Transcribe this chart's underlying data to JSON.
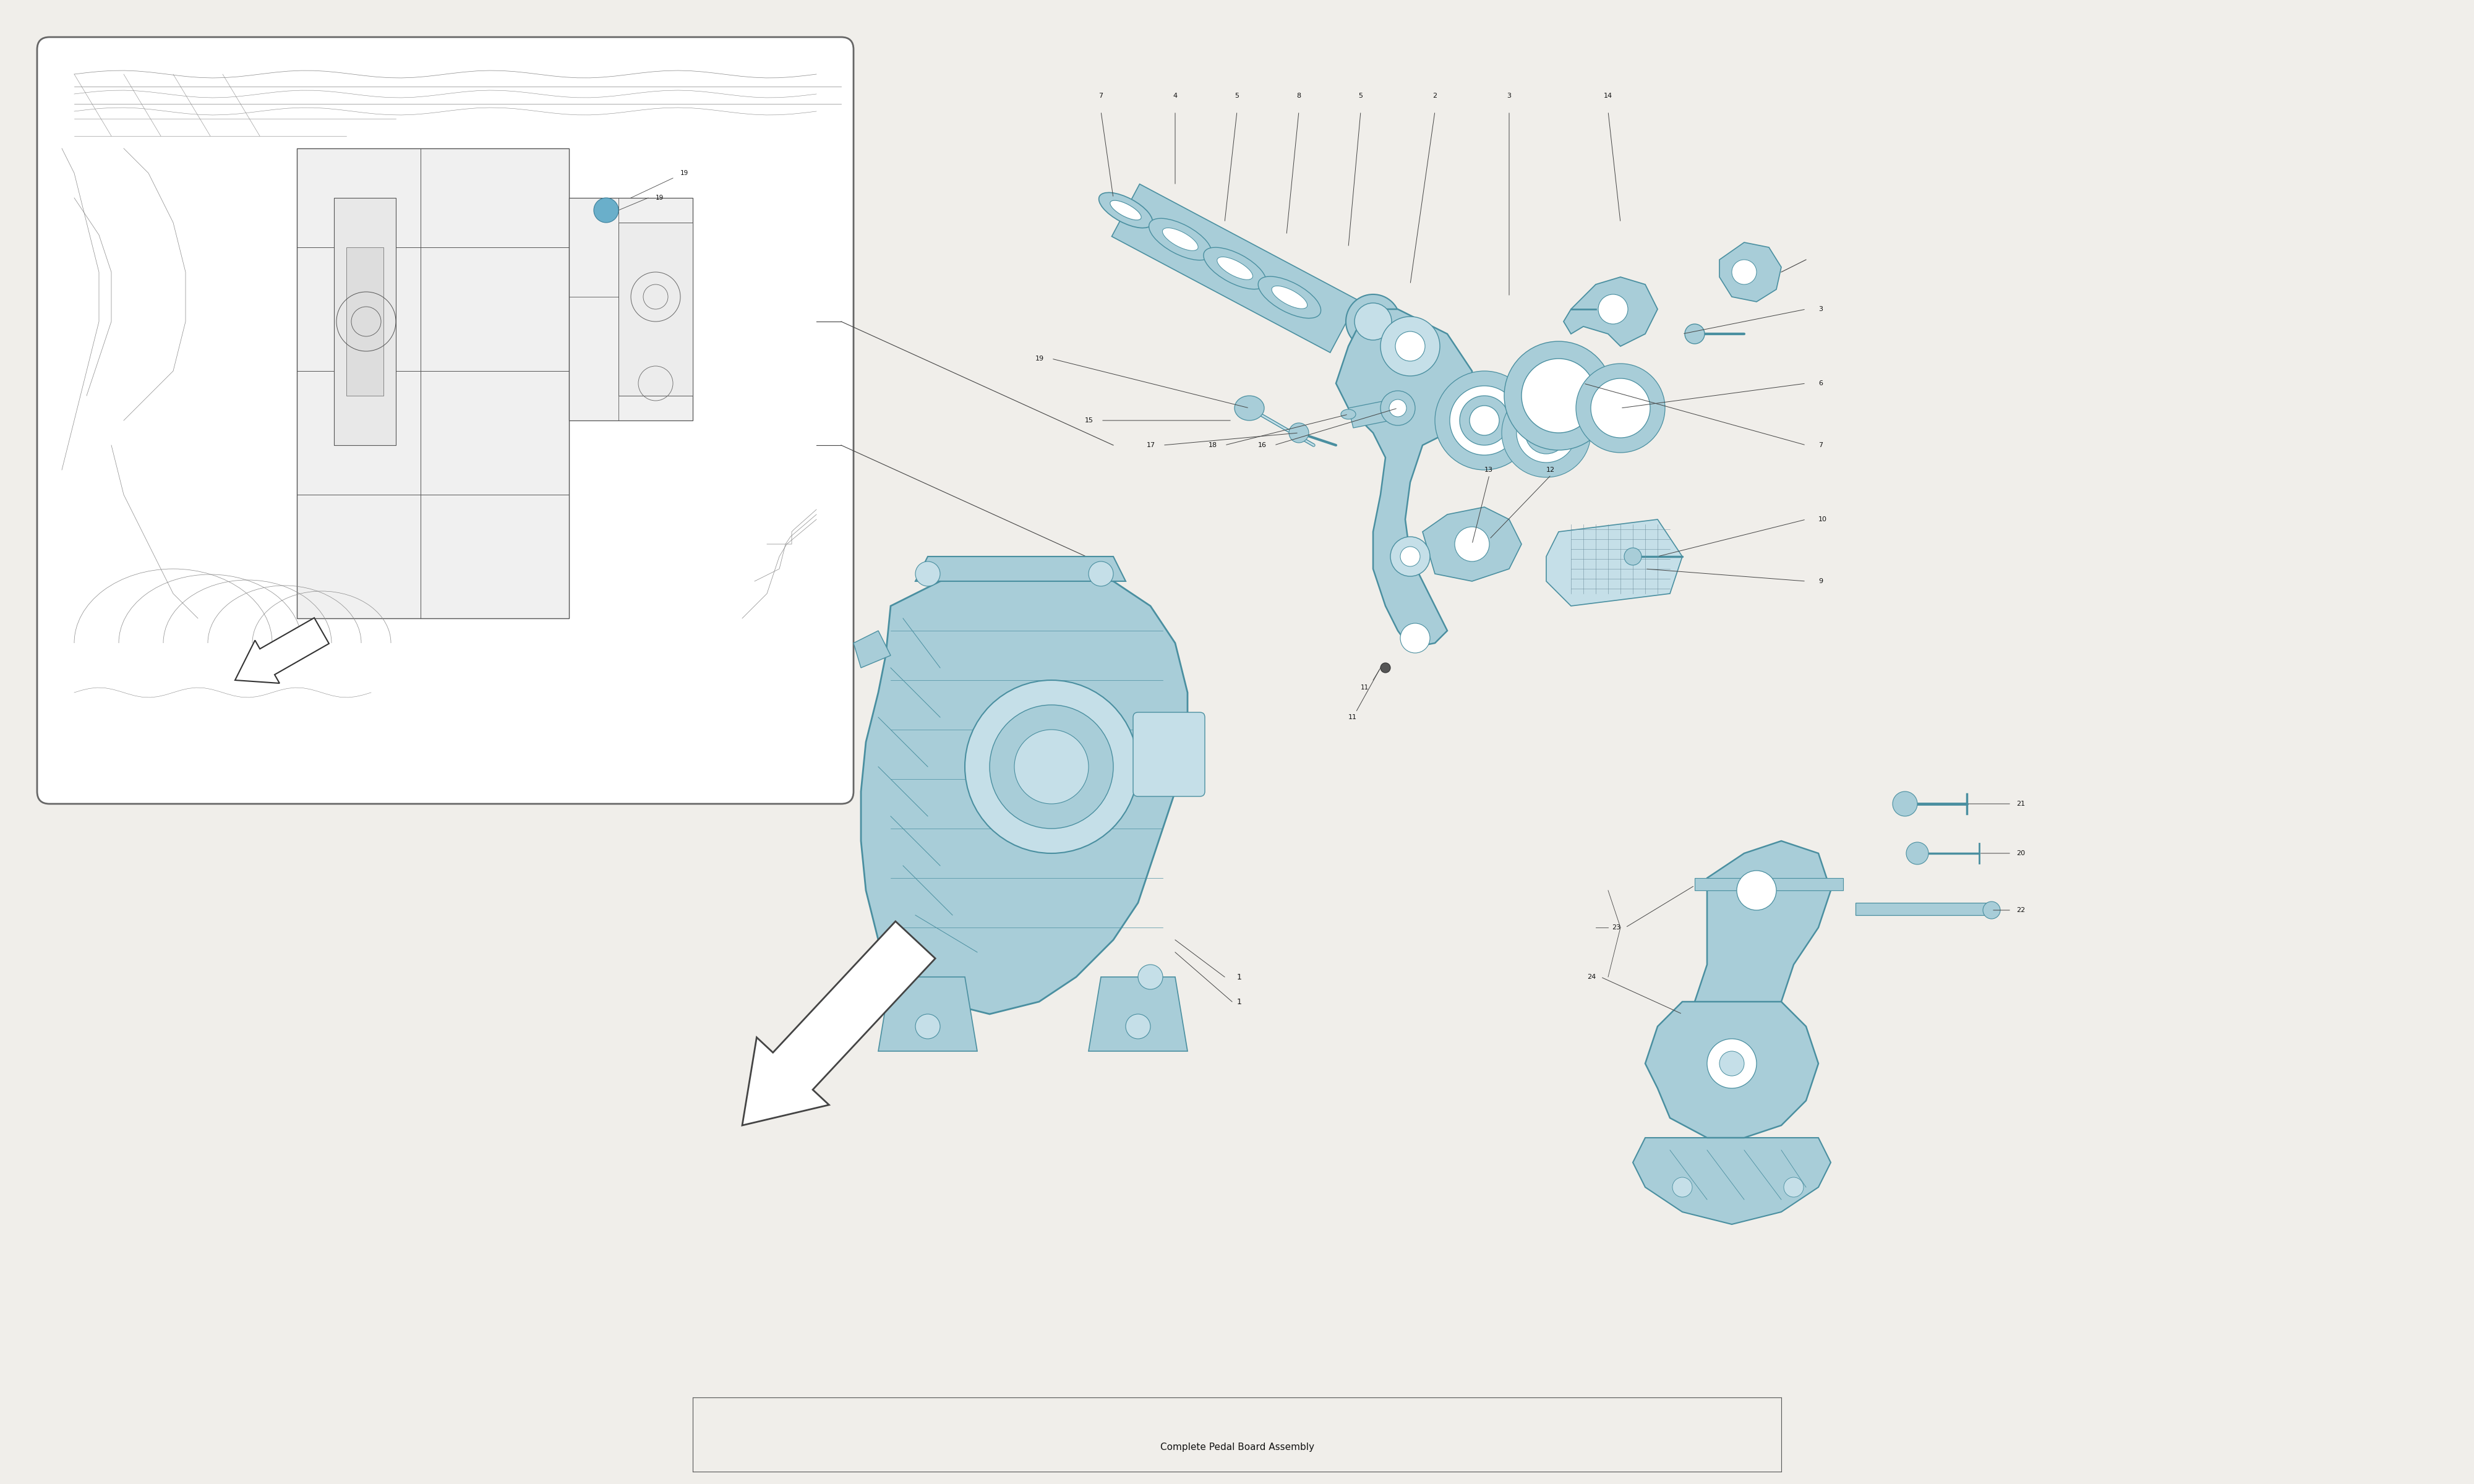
{
  "title": "Complete Pedal Board Assembly",
  "bg_color": "#f0eeea",
  "white": "#ffffff",
  "line_color": "#333333",
  "blue_fill": "#a8cdd8",
  "blue_edge": "#4a8fa0",
  "blue_light": "#c5dfe8",
  "gray_line": "#888888",
  "dark_line": "#444444",
  "text_color": "#111111",
  "inset_border": "#666666"
}
